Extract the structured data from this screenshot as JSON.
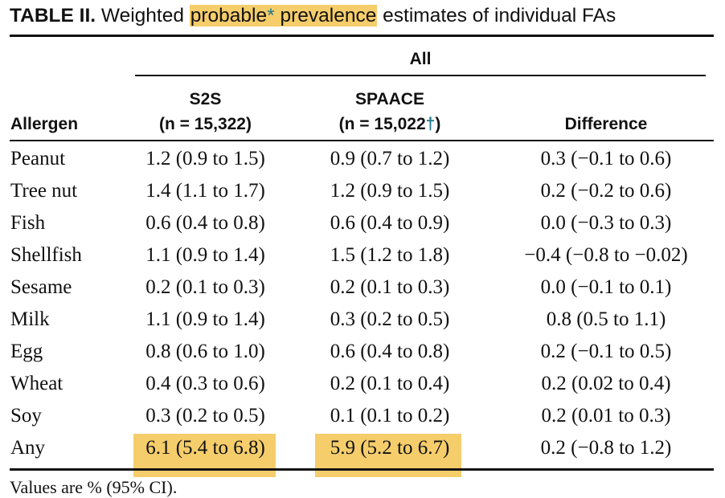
{
  "caption": {
    "label": "TABLE II.",
    "pre": "Weighted",
    "highlight_text": "probable",
    "asterisk": "*",
    "highlight_text2": "prevalence",
    "post": "estimates of individual FAs"
  },
  "header": {
    "group": "All",
    "col0": "Allergen",
    "col1_title": "S2S",
    "col1_n": "(n = 15,322)",
    "col2_title": "SPAACE",
    "col2_n": "(n = 15,022",
    "col2_dagger": "†",
    "col2_close": ")",
    "col3": "Difference"
  },
  "rows": [
    {
      "allergen": "Peanut",
      "s2s": "1.2 (0.9 to 1.5)",
      "spaace": "0.9 (0.7 to 1.2)",
      "diff": "0.3 (−0.1 to 0.6)"
    },
    {
      "allergen": "Tree nut",
      "s2s": "1.4 (1.1 to 1.7)",
      "spaace": "1.2 (0.9 to 1.5)",
      "diff": "0.2 (−0.2 to 0.6)"
    },
    {
      "allergen": "Fish",
      "s2s": "0.6 (0.4 to 0.8)",
      "spaace": "0.6 (0.4 to 0.9)",
      "diff": "0.0 (−0.3 to 0.3)"
    },
    {
      "allergen": "Shellfish",
      "s2s": "1.1 (0.9 to 1.4)",
      "spaace": "1.5 (1.2 to 1.8)",
      "diff": "−0.4 (−0.8 to −0.02)"
    },
    {
      "allergen": "Sesame",
      "s2s": "0.2 (0.1 to 0.3)",
      "spaace": "0.2 (0.1 to 0.3)",
      "diff": "0.0 (−0.1 to 0.1)"
    },
    {
      "allergen": "Milk",
      "s2s": "1.1 (0.9 to 1.4)",
      "spaace": "0.3 (0.2 to 0.5)",
      "diff": "0.8 (0.5 to 1.1)"
    },
    {
      "allergen": "Egg",
      "s2s": "0.8 (0.6 to 1.0)",
      "spaace": "0.6 (0.4 to 0.8)",
      "diff": "0.2 (−0.1 to 0.5)"
    },
    {
      "allergen": "Wheat",
      "s2s": "0.4 (0.3 to 0.6)",
      "spaace": "0.2 (0.1 to 0.4)",
      "diff": "0.2 (0.02 to 0.4)"
    },
    {
      "allergen": "Soy",
      "s2s": "0.3 (0.2 to 0.5)",
      "spaace": "0.1 (0.1 to 0.2)",
      "diff": "0.2 (0.01 to 0.3)"
    },
    {
      "allergen": "Any",
      "s2s": "6.1 (5.4 to 6.8)",
      "spaace": "5.9 (5.2 to 6.7)",
      "diff": "0.2 (−0.8 to 1.2)"
    }
  ],
  "footnote": "Values are % (95% CI)."
}
